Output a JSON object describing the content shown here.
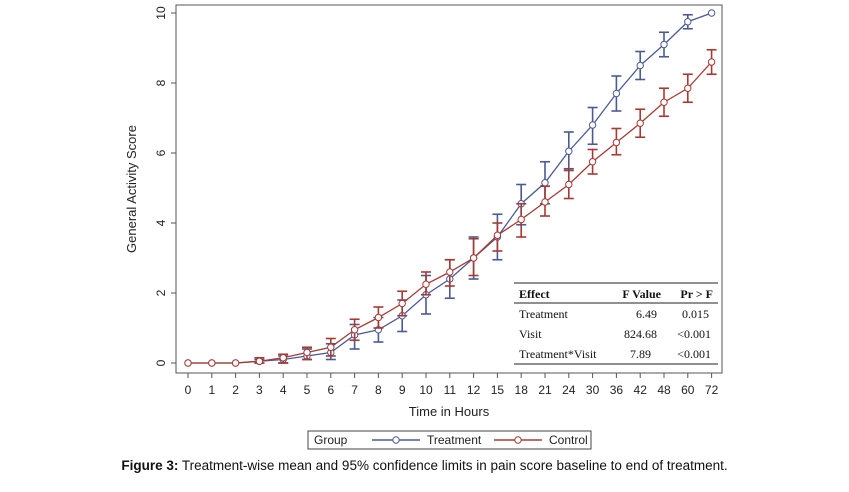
{
  "chart_data": {
    "type": "line",
    "xlabel": "Time in Hours",
    "ylabel": "General Activity Score",
    "ylim": [
      0,
      10
    ],
    "yticks": [
      "0",
      "2",
      "4",
      "6",
      "8",
      "10"
    ],
    "categories": [
      "0",
      "1",
      "2",
      "3",
      "4",
      "5",
      "6",
      "7",
      "8",
      "9",
      "10",
      "11",
      "12",
      "15",
      "18",
      "21",
      "24",
      "30",
      "36",
      "42",
      "48",
      "60",
      "72"
    ],
    "legend": {
      "title": "Group",
      "position": "bottom-center"
    },
    "series": [
      {
        "name": "Treatment",
        "color": "#4a5a94",
        "marker": "open-circle",
        "values": [
          0,
          0,
          0,
          0.05,
          0.1,
          0.2,
          0.3,
          0.8,
          0.95,
          1.35,
          1.95,
          2.4,
          3.0,
          3.6,
          4.55,
          5.15,
          6.05,
          6.8,
          7.7,
          8.5,
          9.1,
          9.75,
          10.0
        ],
        "lower": [
          0,
          0,
          0,
          0,
          0,
          0.1,
          0.1,
          0.4,
          0.6,
          0.9,
          1.4,
          1.85,
          2.4,
          2.95,
          3.95,
          4.55,
          5.5,
          6.25,
          7.2,
          8.1,
          8.75,
          9.55,
          10.0
        ],
        "upper": [
          0,
          0,
          0,
          0.1,
          0.2,
          0.4,
          0.55,
          1.1,
          1.3,
          1.8,
          2.5,
          2.95,
          3.6,
          4.25,
          5.1,
          5.75,
          6.6,
          7.3,
          8.2,
          8.9,
          9.45,
          9.95,
          10.0
        ]
      },
      {
        "name": "Control",
        "color": "#a63a32",
        "marker": "open-circle",
        "values": [
          0,
          0,
          0,
          0.05,
          0.15,
          0.3,
          0.45,
          0.95,
          1.3,
          1.7,
          2.25,
          2.6,
          3.0,
          3.65,
          4.1,
          4.6,
          5.1,
          5.75,
          6.3,
          6.85,
          7.45,
          7.85,
          8.6
        ],
        "lower": [
          0,
          0,
          0,
          0,
          0,
          0.1,
          0.2,
          0.65,
          1.0,
          1.35,
          1.95,
          2.2,
          2.5,
          3.2,
          3.6,
          4.2,
          4.7,
          5.4,
          5.95,
          6.45,
          7.05,
          7.45,
          8.25
        ],
        "upper": [
          0,
          0,
          0,
          0.15,
          0.25,
          0.45,
          0.7,
          1.25,
          1.6,
          2.05,
          2.6,
          2.95,
          3.55,
          4.0,
          4.55,
          5.05,
          5.55,
          6.1,
          6.7,
          7.25,
          7.85,
          8.25,
          8.95
        ]
      }
    ]
  },
  "stats_table": {
    "headers": [
      "Effect",
      "F Value",
      "Pr > F"
    ],
    "rows": [
      [
        "Treatment",
        "6.49",
        "0.015"
      ],
      [
        "Visit",
        "824.68",
        "<0.001"
      ],
      [
        "Treatment*Visit",
        "7.89",
        "<0.001"
      ]
    ]
  },
  "caption": {
    "prefix": "Figure 3:",
    "text": " Treatment-wise mean and 95% confidence limits in pain score baseline to end of treatment."
  }
}
